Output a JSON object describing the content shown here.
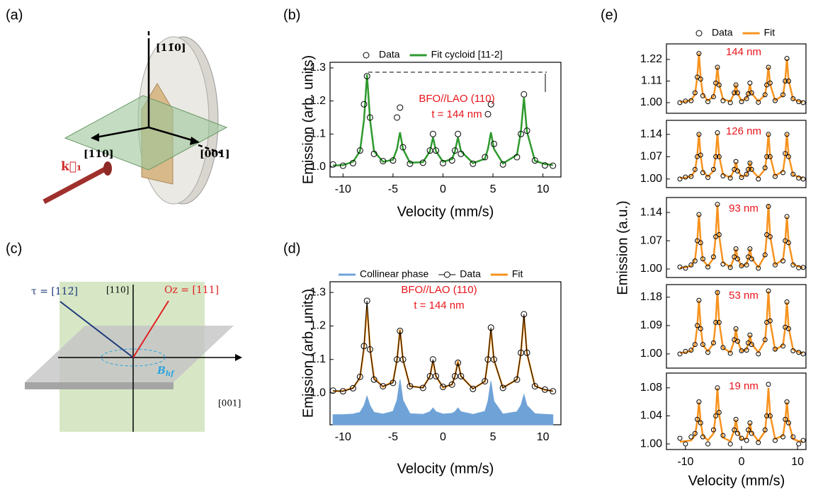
{
  "panel_labels": [
    "(a)",
    "(b)",
    "(c)",
    "(d)",
    "(e)"
  ],
  "diagram_a": {
    "axis_vertical": "[11̄0]",
    "axis_in_plane": "[110]",
    "axis_horizontal": "[001]",
    "wave_vector": "k⃗₁"
  },
  "diagram_c": {
    "tau": "τ = [112̄]",
    "vertical": "[110]",
    "oz": "Oz = [111]",
    "horizontal": "[001]",
    "field": {
      "symbol": "B",
      "subscript": "hf"
    }
  },
  "panel_e": {
    "xlabel": "Velocity (mm/s)",
    "ylabel": "Emission (a.u.)"
  },
  "chart_data": [
    {
      "type": "line",
      "xlabel": "Velocity (mm/s)",
      "ylabel": "Emission (arb. units)",
      "annotations": [
        "BFO//LAO (110)",
        "t = 144 nm"
      ],
      "annotation_color": "#e8141b",
      "xlim": [
        -11.3,
        11.8
      ],
      "xticks": [
        -10,
        -5,
        0,
        5,
        10
      ],
      "ylim": [
        0.97,
        1.317
      ],
      "yticks": [
        {
          "value": 1.0,
          "label": "1.0"
        },
        1.1,
        1.2,
        1.3
      ],
      "x": [
        -11,
        -10,
        -9,
        -8.3,
        -7.9,
        -7.6,
        -7.3,
        -6.9,
        -6,
        -5,
        -4.6,
        -4.3,
        -4,
        -3.3,
        -2,
        -1.3,
        -1,
        -0.7,
        0,
        0.9,
        1.2,
        1.5,
        1.8,
        3,
        4.2,
        4.5,
        4.8,
        5.1,
        6,
        7.4,
        7.8,
        8.1,
        8.4,
        9.2,
        10.2,
        11
      ],
      "series": [
        {
          "name": "Data",
          "kind": "scatter",
          "color": "#000000",
          "values": [
            1.008,
            1.004,
            1.012,
            1.05,
            1.19,
            1.275,
            1.15,
            1.04,
            1.018,
            1.02,
            1.15,
            1.18,
            1.06,
            1.01,
            1.013,
            1.05,
            1.1,
            1.05,
            1.012,
            1.02,
            1.05,
            1.1,
            1.04,
            1.01,
            1.03,
            1.16,
            1.19,
            1.07,
            1.008,
            1.03,
            1.1,
            1.22,
            1.11,
            1.02,
            1.005,
            1.004
          ]
        },
        {
          "name": "Fit cycloid [11-2]",
          "kind": "line",
          "color": "#2e9a2e",
          "values": [
            1.005,
            1.006,
            1.016,
            1.048,
            1.143,
            1.28,
            1.143,
            1.048,
            1.016,
            1.022,
            1.055,
            1.105,
            1.055,
            1.013,
            1.015,
            1.048,
            1.09,
            1.048,
            1.016,
            1.024,
            1.048,
            1.09,
            1.048,
            1.012,
            1.025,
            1.055,
            1.105,
            1.055,
            1.011,
            1.037,
            1.1075,
            1.21,
            1.1075,
            1.019,
            1.009,
            1.006
          ]
        }
      ]
    },
    {
      "type": "line",
      "xlabel": "Velocity (mm/s)",
      "ylabel": "Emission (arb. units)",
      "annotations": [
        "BFO//LAO (110)",
        "t = 144 nm"
      ],
      "annotation_color": "#e8141b",
      "xlim": [
        -11.3,
        11.8
      ],
      "xticks": [
        -10,
        -5,
        0,
        5,
        10
      ],
      "ylim": [
        0.905,
        1.332
      ],
      "yticks": [
        {
          "value": 1.0,
          "label": "1.0"
        },
        1.1,
        1.2,
        1.3
      ],
      "x": [
        -11,
        -10,
        -9,
        -8.3,
        -7.9,
        -7.6,
        -7.3,
        -6.9,
        -6,
        -5,
        -4.6,
        -4.3,
        -4,
        -3.3,
        -2,
        -1.3,
        -1,
        -0.7,
        0,
        0.9,
        1.2,
        1.5,
        1.8,
        3,
        4.2,
        4.5,
        4.8,
        5.1,
        6,
        7.4,
        7.8,
        8.1,
        8.4,
        9.2,
        10.2,
        11
      ],
      "series": [
        {
          "name": "Collinear phase",
          "kind": "area",
          "color": "#6fa3d8",
          "values": [
            0.935,
            0.935,
            0.937,
            0.942,
            0.962,
            0.99,
            0.962,
            0.942,
            0.937,
            0.945,
            0.978,
            1.04,
            0.978,
            0.938,
            0.936,
            0.944,
            0.955,
            0.944,
            0.937,
            0.939,
            0.944,
            0.955,
            0.944,
            0.936,
            0.945,
            0.975,
            1.035,
            0.975,
            0.937,
            0.944,
            0.963,
            0.995,
            0.963,
            0.938,
            0.936,
            0.935
          ]
        },
        {
          "name": "Data",
          "kind": "line_marker",
          "color": "#000000",
          "values": [
            1.007,
            1.005,
            1.014,
            1.048,
            1.14,
            1.275,
            1.13,
            1.04,
            1.02,
            1.03,
            1.1,
            1.185,
            1.1,
            1.02,
            1.015,
            1.05,
            1.1,
            1.05,
            1.018,
            1.025,
            1.05,
            1.09,
            1.05,
            1.012,
            1.035,
            1.1,
            1.195,
            1.1,
            1.015,
            1.04,
            1.12,
            1.235,
            1.12,
            1.02,
            1.01,
            1.005
          ]
        },
        {
          "name": "Fit",
          "kind": "line",
          "color": "#f7931e",
          "values": [
            1.005,
            1.006,
            1.015,
            1.045,
            1.133,
            1.26,
            1.133,
            1.045,
            1.018,
            1.034,
            1.098,
            1.19,
            1.098,
            1.02,
            1.016,
            1.05,
            1.095,
            1.05,
            1.016,
            1.025,
            1.05,
            1.095,
            1.05,
            1.013,
            1.034,
            1.098,
            1.19,
            1.098,
            1.016,
            1.04,
            1.118,
            1.23,
            1.118,
            1.021,
            1.009,
            1.006
          ]
        }
      ]
    },
    {
      "type": "line",
      "annotations": [
        "144 nm"
      ],
      "annotation_color": "#e8141b",
      "xlim": [
        -13.4,
        11.5
      ],
      "ylim": [
        0.946,
        1.299
      ],
      "yticks": [
        {
          "value": 1.0,
          "label": "1.00"
        },
        1.11,
        1.22
      ],
      "x": [
        -11,
        -10,
        -9,
        -8.3,
        -7.9,
        -7.6,
        -7.3,
        -6.9,
        -6,
        -5,
        -4.6,
        -4.3,
        -4,
        -3.3,
        -2,
        -1.3,
        -1,
        -0.7,
        0,
        0.9,
        1.2,
        1.5,
        1.8,
        3,
        4.2,
        4.5,
        4.8,
        5.1,
        6,
        7.4,
        7.8,
        8.1,
        8.4,
        9.2,
        10.2,
        11
      ],
      "series": [
        {
          "name": "Data",
          "kind": "scatter",
          "color": "#000000",
          "values": [
            1.0,
            1.008,
            1.01,
            1.05,
            1.13,
            1.25,
            1.12,
            1.035,
            1.005,
            1.03,
            1.1,
            1.18,
            1.09,
            1.01,
            1.0,
            1.05,
            1.09,
            1.05,
            1.005,
            1.02,
            1.045,
            1.1,
            1.05,
            1.002,
            1.04,
            1.09,
            1.18,
            1.1,
            1.01,
            1.04,
            1.11,
            1.225,
            1.11,
            1.02,
            1.005,
            1.0
          ]
        },
        {
          "name": "Fit",
          "kind": "line",
          "color": "#f7931e",
          "values": [
            1.003,
            1.006,
            1.013,
            1.042,
            1.128,
            1.253,
            1.128,
            1.042,
            1.01,
            1.031,
            1.093,
            1.183,
            1.093,
            1.017,
            1.006,
            1.048,
            1.093,
            1.048,
            1.01,
            1.021,
            1.048,
            1.093,
            1.048,
            1.006,
            1.039,
            1.093,
            1.183,
            1.093,
            1.012,
            1.037,
            1.113,
            1.223,
            1.113,
            1.018,
            1.007,
            1.003
          ]
        }
      ]
    },
    {
      "type": "line",
      "annotations": [
        "126 nm"
      ],
      "annotation_color": "#e8141b",
      "xlim": [
        -13.4,
        11.5
      ],
      "ylim": [
        0.973,
        1.184
      ],
      "yticks": [
        {
          "value": 1.0,
          "label": "1.00"
        },
        1.07,
        1.14
      ],
      "x": [
        -11,
        -10,
        -9,
        -8.3,
        -7.9,
        -7.6,
        -7.3,
        -6.9,
        -6,
        -5,
        -4.6,
        -4.3,
        -4,
        -3.3,
        -2,
        -1.3,
        -1,
        -0.7,
        0,
        0.9,
        1.2,
        1.5,
        1.8,
        3,
        4.2,
        4.5,
        4.8,
        5.1,
        6,
        7.4,
        7.8,
        8.1,
        8.4,
        9.2,
        10.2,
        11
      ],
      "series": [
        {
          "kind": "scatter",
          "color": "#000000",
          "values": [
            1.0,
            1.006,
            1.008,
            1.03,
            1.07,
            1.14,
            1.075,
            1.02,
            1.005,
            1.03,
            1.07,
            1.145,
            1.07,
            1.01,
            1.003,
            1.03,
            1.055,
            1.025,
            1.005,
            1.015,
            1.03,
            1.05,
            1.03,
            1.0,
            1.035,
            1.07,
            1.14,
            1.07,
            1.008,
            1.02,
            1.08,
            1.14,
            1.07,
            1.015,
            1.003,
            1.0
          ]
        },
        {
          "kind": "line",
          "color": "#f7931e",
          "values": [
            1.003,
            1.004,
            1.009,
            1.025,
            1.073,
            1.143,
            1.073,
            1.025,
            1.007,
            1.025,
            1.073,
            1.143,
            1.073,
            1.014,
            1.005,
            1.028,
            1.053,
            1.028,
            1.007,
            1.013,
            1.028,
            1.053,
            1.028,
            1.005,
            1.031,
            1.073,
            1.143,
            1.073,
            1.01,
            1.025,
            1.073,
            1.143,
            1.073,
            1.013,
            1.006,
            1.003
          ]
        }
      ]
    },
    {
      "type": "line",
      "annotations": [
        "93 nm"
      ],
      "annotation_color": "#e8141b",
      "xlim": [
        -13.4,
        11.5
      ],
      "ylim": [
        0.979,
        1.177
      ],
      "yticks": [
        {
          "value": 1.0,
          "label": "1.00"
        },
        1.07,
        1.14
      ],
      "x": [
        -11,
        -10,
        -9,
        -8.3,
        -7.9,
        -7.6,
        -7.3,
        -6.9,
        -6,
        -5,
        -4.6,
        -4.3,
        -4,
        -3.3,
        -2,
        -1.3,
        -1,
        -0.7,
        0,
        0.9,
        1.2,
        1.5,
        1.8,
        3,
        4.2,
        4.5,
        4.8,
        5.1,
        6,
        7.4,
        7.8,
        8.1,
        8.4,
        9.2,
        10.2,
        11
      ],
      "series": [
        {
          "kind": "scatter",
          "color": "#000000",
          "values": [
            1.005,
            1.002,
            1.01,
            1.02,
            1.07,
            1.135,
            1.065,
            1.025,
            1.005,
            1.03,
            1.08,
            1.16,
            1.085,
            1.012,
            1.004,
            1.03,
            1.05,
            1.025,
            1.008,
            1.01,
            1.03,
            1.05,
            1.025,
            1.002,
            1.035,
            1.085,
            1.155,
            1.08,
            1.01,
            1.02,
            1.07,
            1.13,
            1.065,
            1.01,
            1.003,
            1.004
          ]
        },
        {
          "kind": "line",
          "color": "#f7931e",
          "values": [
            1.003,
            1.004,
            1.008,
            1.023,
            1.069,
            1.135,
            1.069,
            1.023,
            1.007,
            1.027,
            1.082,
            1.16,
            1.082,
            1.016,
            1.005,
            1.027,
            1.05,
            1.027,
            1.007,
            1.012,
            1.027,
            1.05,
            1.027,
            1.004,
            1.034,
            1.082,
            1.16,
            1.082,
            1.011,
            1.023,
            1.067,
            1.13,
            1.067,
            1.012,
            1.006,
            1.003
          ]
        }
      ]
    },
    {
      "type": "line",
      "annotations": [
        "53 nm"
      ],
      "annotation_color": "#e8141b",
      "xlim": [
        -13.4,
        11.5
      ],
      "ylim": [
        0.955,
        1.22
      ],
      "yticks": [
        {
          "value": 1.0,
          "label": "1.00"
        },
        1.09,
        1.18
      ],
      "x": [
        -11,
        -10,
        -9,
        -8.3,
        -7.9,
        -7.6,
        -7.3,
        -6.9,
        -6,
        -5,
        -4.6,
        -4.3,
        -4,
        -3.3,
        -2,
        -1.3,
        -1,
        -0.7,
        0,
        0.9,
        1.2,
        1.5,
        1.8,
        3,
        4.2,
        4.5,
        4.8,
        5.1,
        6,
        7.4,
        7.8,
        8.1,
        8.4,
        9.2,
        10.2,
        11
      ],
      "series": [
        {
          "kind": "scatter",
          "color": "#000000",
          "values": [
            1.0,
            1.008,
            1.012,
            1.03,
            1.09,
            1.17,
            1.08,
            1.03,
            1.005,
            1.035,
            1.1,
            1.195,
            1.1,
            1.02,
            1.002,
            1.045,
            1.08,
            1.04,
            1.01,
            1.012,
            1.035,
            1.06,
            1.03,
            1.0,
            1.045,
            1.1,
            1.2,
            1.105,
            1.015,
            1.025,
            1.085,
            1.165,
            1.08,
            1.01,
            1.005,
            1.0
          ]
        },
        {
          "kind": "line",
          "color": "#f7931e",
          "values": [
            1.003,
            1.005,
            1.01,
            1.029,
            1.087,
            1.17,
            1.087,
            1.029,
            1.008,
            1.034,
            1.102,
            1.2,
            1.102,
            1.019,
            1.005,
            1.042,
            1.08,
            1.042,
            1.009,
            1.014,
            1.032,
            1.06,
            1.032,
            1.005,
            1.042,
            1.102,
            1.2,
            1.102,
            1.013,
            1.028,
            1.084,
            1.165,
            1.084,
            1.014,
            1.006,
            1.003
          ]
        }
      ]
    },
    {
      "type": "line",
      "annotations": [
        "19 nm"
      ],
      "annotation_color": "#e8141b",
      "xlim": [
        -13.4,
        11.5
      ],
      "xticks": [
        -10,
        0,
        10
      ],
      "ylim": [
        0.992,
        1.101
      ],
      "yticks": [
        {
          "value": 1.0,
          "label": "1.00"
        },
        1.04,
        1.08
      ],
      "x": [
        -11,
        -10,
        -9,
        -8.3,
        -7.9,
        -7.6,
        -7.3,
        -6.9,
        -6,
        -5,
        -4.6,
        -4.3,
        -4,
        -3.3,
        -2,
        -1.3,
        -1,
        -0.7,
        0,
        0.9,
        1.2,
        1.5,
        1.8,
        3,
        4.2,
        4.5,
        4.8,
        5.1,
        6,
        7.4,
        7.8,
        8.1,
        8.4,
        9.2,
        10.2,
        11
      ],
      "series": [
        {
          "kind": "scatter",
          "color": "#000000",
          "values": [
            1.008,
            1.0,
            1.01,
            1.015,
            1.035,
            1.06,
            1.03,
            1.01,
            1.0,
            1.02,
            1.04,
            1.08,
            1.045,
            1.012,
            1.0,
            1.02,
            1.035,
            1.015,
            1.008,
            1.005,
            1.02,
            1.03,
            1.015,
            1.002,
            1.02,
            1.04,
            1.085,
            1.04,
            1.005,
            1.01,
            1.035,
            1.06,
            1.03,
            1.01,
            1.0,
            1.005
          ]
        },
        {
          "kind": "line",
          "color": "#f7931e",
          "values": [
            1.003,
            1.004,
            1.005,
            1.012,
            1.032,
            1.06,
            1.032,
            1.012,
            1.005,
            1.015,
            1.042,
            1.08,
            1.042,
            1.009,
            1.004,
            1.019,
            1.035,
            1.019,
            1.006,
            1.008,
            1.017,
            1.03,
            1.017,
            1.004,
            1.018,
            1.042,
            1.08,
            1.042,
            1.007,
            1.012,
            1.032,
            1.06,
            1.032,
            1.007,
            1.004,
            1.003
          ]
        }
      ]
    }
  ]
}
